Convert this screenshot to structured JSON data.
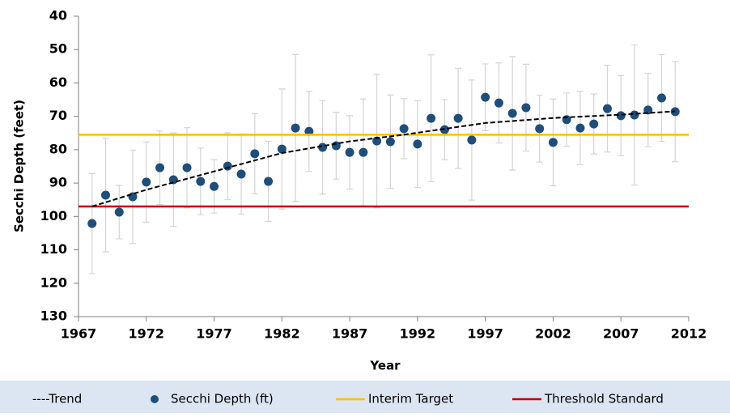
{
  "chart_data": {
    "type": "scatter",
    "x_label": "Year",
    "y_label": "Secchi Depth (feet)",
    "xlim": [
      1967,
      2012
    ],
    "xticks": [
      1967,
      1972,
      1977,
      1982,
      1987,
      1992,
      1997,
      2002,
      2007,
      2012
    ],
    "ylim": [
      40,
      130
    ],
    "y_reversed": true,
    "yticks": [
      40,
      50,
      60,
      70,
      80,
      90,
      100,
      110,
      120,
      130
    ],
    "legend": "bottom",
    "series": [
      {
        "name": "----Trend",
        "kind": "line",
        "color": "#000000",
        "dashed": true,
        "x": [
          1968,
          1972,
          1977,
          1982,
          1987,
          1991,
          1997,
          2002,
          2007,
          2011
        ],
        "values": [
          97,
          92,
          86.5,
          81,
          77.5,
          75.5,
          72,
          70.5,
          69.5,
          68.5
        ]
      },
      {
        "name": "Secchi Depth (ft)",
        "kind": "points",
        "color": "#1f4e79",
        "error_color": "#d4d4d4",
        "x": [
          1968,
          1969,
          1970,
          1971,
          1972,
          1973,
          1974,
          1975,
          1976,
          1977,
          1978,
          1979,
          1980,
          1981,
          1982,
          1983,
          1984,
          1985,
          1986,
          1987,
          1988,
          1989,
          1990,
          1991,
          1992,
          1993,
          1994,
          1995,
          1996,
          1997,
          1998,
          1999,
          2000,
          2001,
          2002,
          2003,
          2004,
          2005,
          2006,
          2007,
          2008,
          2009,
          2010,
          2011
        ],
        "values": [
          102.1,
          93.6,
          98.7,
          94.1,
          89.7,
          85.4,
          89,
          85.4,
          89.5,
          91,
          84.9,
          87.3,
          81.2,
          89.5,
          79.8,
          73.5,
          74.5,
          79.3,
          78.8,
          80.8,
          80.8,
          77.4,
          77.6,
          73.7,
          78.3,
          70.6,
          74,
          70.6,
          77.1,
          64.3,
          66,
          69.1,
          67.4,
          73.7,
          77.8,
          71,
          73.5,
          72.3,
          67.7,
          69.8,
          69.6,
          68.1,
          64.5,
          68.6
        ],
        "errors": [
          15,
          17,
          8,
          14,
          12,
          11,
          14,
          12,
          10,
          8,
          10,
          12,
          12,
          12,
          18,
          22,
          12,
          14,
          10,
          11,
          16,
          20,
          14,
          9,
          13,
          19,
          9,
          15,
          18,
          10,
          12,
          17,
          13,
          10,
          13,
          8,
          11,
          9,
          13,
          12,
          21,
          11,
          13,
          15
        ]
      },
      {
        "name": "Interim Target",
        "kind": "hline",
        "color": "#ffc000",
        "value": 75.5
      },
      {
        "name": "Threshold Standard",
        "kind": "hline",
        "color": "#c00000",
        "value": 97
      }
    ]
  }
}
